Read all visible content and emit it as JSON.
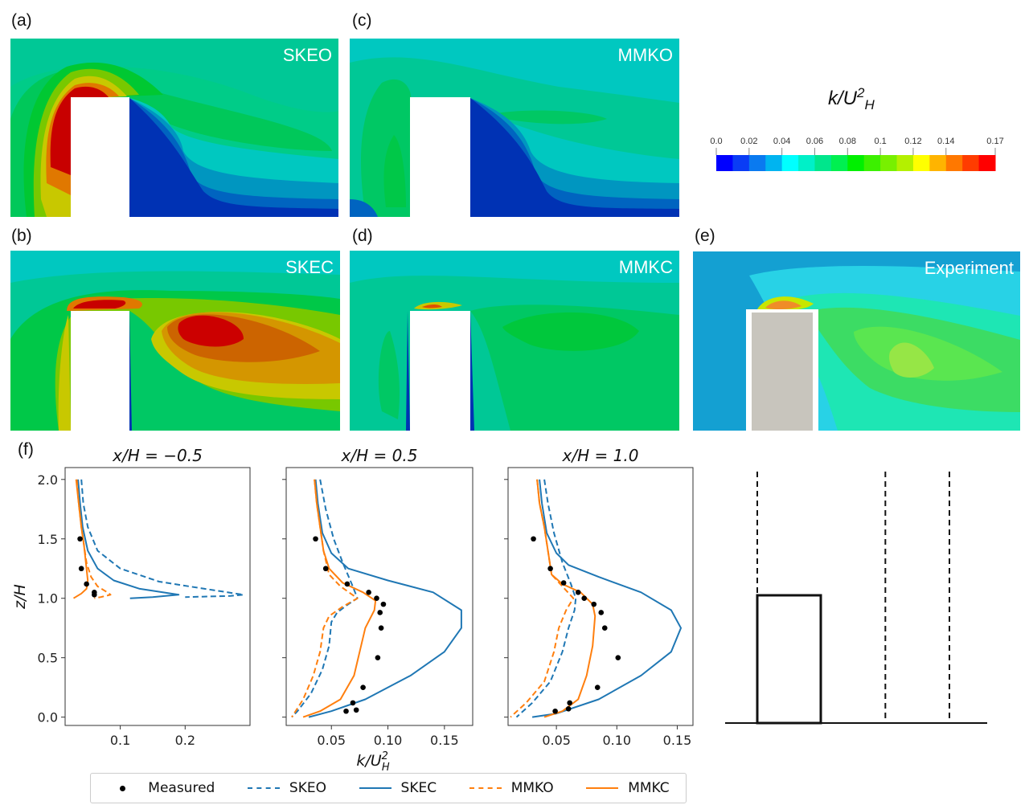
{
  "colors": {
    "skeo": "#1f77b4",
    "skec": "#1f77b4",
    "mmko": "#ff7f0e",
    "mmkc": "#ff7f0e",
    "measured": "#000000",
    "obstacle_sim": "#ffffff",
    "obstacle_exp": "#c8c5bd"
  },
  "panels": [
    {
      "id": "a",
      "label": "(a)",
      "title": "SKEO"
    },
    {
      "id": "c",
      "label": "(c)",
      "title": "MMKO"
    },
    {
      "id": "b",
      "label": "(b)",
      "title": "SKEC"
    },
    {
      "id": "d",
      "label": "(d)",
      "title": "MMKC"
    },
    {
      "id": "e",
      "label": "(e)",
      "title": "Experiment"
    },
    {
      "id": "f",
      "label": "(f)"
    }
  ],
  "colorbar": {
    "title_base": "k/U",
    "title_sup": "2",
    "title_sub": "H",
    "ticks": [
      "0.0",
      "0.02",
      "0.04",
      "0.06",
      "0.08",
      "0.1",
      "0.12",
      "0.14",
      "0.17"
    ],
    "tick_values": [
      0.0,
      0.02,
      0.04,
      0.06,
      0.08,
      0.1,
      0.12,
      0.14,
      0.17
    ],
    "range": [
      0.0,
      0.17
    ],
    "levels": [
      "#0000ff",
      "#0a3cf5",
      "#0a7af0",
      "#00b4f0",
      "#00ffff",
      "#00f0c8",
      "#00e68c",
      "#00f050",
      "#00f000",
      "#3cf000",
      "#78f000",
      "#b4f000",
      "#ffff00",
      "#ffb400",
      "#ff7800",
      "#ff3c00",
      "#ff0000"
    ]
  },
  "legend": {
    "items": [
      {
        "label": "Measured",
        "key": "measured"
      },
      {
        "label": "SKEO",
        "key": "skeo"
      },
      {
        "label": "SKEC",
        "key": "skec"
      },
      {
        "label": "MMKO",
        "key": "mmko"
      },
      {
        "label": "MMKC",
        "key": "mmkc"
      }
    ]
  },
  "schematic": {
    "description": "Building outline with three vertical dashed sampling lines",
    "sample_x_over_H": [
      -0.5,
      0.5,
      1.0
    ]
  },
  "chart_data": [
    {
      "type": "line",
      "title": "x/H = −0.5",
      "xlabel": "",
      "ylabel": "z/H",
      "xlim": [
        0.015,
        0.3
      ],
      "ylim": [
        -0.07,
        2.1
      ],
      "xticks": [
        0.1,
        0.2
      ],
      "xtick_labels": [
        "0.1",
        "0.2"
      ],
      "yticks": [
        0.0,
        0.5,
        1.0,
        1.5,
        2.0
      ],
      "ytick_labels": [
        "0.0",
        "0.5",
        "1.0",
        "1.5",
        "2.0"
      ],
      "series": [
        {
          "name": "SKEO",
          "style": "dashed",
          "points": [
            [
              0.04,
              2.0
            ],
            [
              0.043,
              1.8
            ],
            [
              0.05,
              1.6
            ],
            [
              0.065,
              1.4
            ],
            [
              0.1,
              1.25
            ],
            [
              0.16,
              1.14
            ],
            [
              0.23,
              1.08
            ],
            [
              0.29,
              1.03
            ],
            [
              0.27,
              1.02
            ],
            [
              0.2,
              1.01
            ]
          ]
        },
        {
          "name": "SKEC",
          "style": "solid",
          "points": [
            [
              0.035,
              2.0
            ],
            [
              0.038,
              1.8
            ],
            [
              0.042,
              1.6
            ],
            [
              0.05,
              1.4
            ],
            [
              0.065,
              1.25
            ],
            [
              0.09,
              1.15
            ],
            [
              0.13,
              1.08
            ],
            [
              0.19,
              1.03
            ],
            [
              0.15,
              1.01
            ],
            [
              0.115,
              1.0
            ]
          ]
        },
        {
          "name": "MMKO",
          "style": "dashed",
          "points": [
            [
              0.033,
              2.0
            ],
            [
              0.036,
              1.8
            ],
            [
              0.04,
              1.6
            ],
            [
              0.044,
              1.45
            ],
            [
              0.048,
              1.3
            ],
            [
              0.055,
              1.18
            ],
            [
              0.065,
              1.1
            ],
            [
              0.08,
              1.05
            ],
            [
              0.085,
              1.03
            ],
            [
              0.07,
              1.01
            ],
            [
              0.06,
              1.0
            ]
          ]
        },
        {
          "name": "MMKC",
          "style": "solid",
          "points": [
            [
              0.032,
              2.0
            ],
            [
              0.036,
              1.8
            ],
            [
              0.04,
              1.6
            ],
            [
              0.044,
              1.45
            ],
            [
              0.047,
              1.3
            ],
            [
              0.05,
              1.15
            ],
            [
              0.048,
              1.08
            ],
            [
              0.04,
              1.04
            ],
            [
              0.028,
              1.0
            ]
          ]
        },
        {
          "name": "Measured",
          "style": "markers",
          "points": [
            [
              0.038,
              1.5
            ],
            [
              0.04,
              1.25
            ],
            [
              0.048,
              1.12
            ],
            [
              0.06,
              1.05
            ],
            [
              0.06,
              1.03
            ]
          ]
        }
      ]
    },
    {
      "type": "line",
      "title": "x/H = 0.5",
      "xlabel": "k/U_H^2",
      "ylabel": "",
      "xlim": [
        0.01,
        0.175
      ],
      "ylim": [
        -0.07,
        2.1
      ],
      "xticks": [
        0.05,
        0.1,
        0.15
      ],
      "xtick_labels": [
        "0.05",
        "0.10",
        "0.15"
      ],
      "yticks": [
        0.0,
        0.5,
        1.0,
        1.5,
        2.0
      ],
      "ytick_labels": [],
      "series": [
        {
          "name": "SKEO",
          "style": "dashed",
          "points": [
            [
              0.04,
              2.0
            ],
            [
              0.045,
              1.75
            ],
            [
              0.052,
              1.5
            ],
            [
              0.06,
              1.3
            ],
            [
              0.068,
              1.12
            ],
            [
              0.073,
              1.0
            ],
            [
              0.065,
              0.95
            ],
            [
              0.055,
              0.88
            ],
            [
              0.05,
              0.8
            ],
            [
              0.048,
              0.6
            ],
            [
              0.042,
              0.4
            ],
            [
              0.032,
              0.2
            ],
            [
              0.02,
              0.05
            ],
            [
              0.015,
              0.0
            ]
          ]
        },
        {
          "name": "SKEC",
          "style": "solid",
          "points": [
            [
              0.036,
              2.0
            ],
            [
              0.038,
              1.8
            ],
            [
              0.042,
              1.55
            ],
            [
              0.05,
              1.38
            ],
            [
              0.065,
              1.25
            ],
            [
              0.1,
              1.15
            ],
            [
              0.14,
              1.05
            ],
            [
              0.165,
              0.9
            ],
            [
              0.165,
              0.75
            ],
            [
              0.15,
              0.55
            ],
            [
              0.12,
              0.35
            ],
            [
              0.08,
              0.15
            ],
            [
              0.05,
              0.05
            ],
            [
              0.03,
              0.0
            ]
          ]
        },
        {
          "name": "MMKO",
          "style": "dashed",
          "points": [
            [
              0.035,
              2.0
            ],
            [
              0.037,
              1.8
            ],
            [
              0.04,
              1.6
            ],
            [
              0.043,
              1.4
            ],
            [
              0.048,
              1.2
            ],
            [
              0.058,
              1.1
            ],
            [
              0.073,
              1.0
            ],
            [
              0.06,
              0.93
            ],
            [
              0.048,
              0.85
            ],
            [
              0.043,
              0.75
            ],
            [
              0.04,
              0.55
            ],
            [
              0.034,
              0.35
            ],
            [
              0.025,
              0.15
            ],
            [
              0.015,
              0.0
            ]
          ]
        },
        {
          "name": "MMKC",
          "style": "solid",
          "points": [
            [
              0.035,
              2.0
            ],
            [
              0.037,
              1.8
            ],
            [
              0.04,
              1.6
            ],
            [
              0.043,
              1.4
            ],
            [
              0.048,
              1.25
            ],
            [
              0.06,
              1.13
            ],
            [
              0.078,
              1.05
            ],
            [
              0.089,
              0.98
            ],
            [
              0.088,
              0.9
            ],
            [
              0.08,
              0.75
            ],
            [
              0.075,
              0.55
            ],
            [
              0.07,
              0.35
            ],
            [
              0.058,
              0.15
            ],
            [
              0.04,
              0.05
            ],
            [
              0.025,
              0.0
            ]
          ]
        },
        {
          "name": "Measured",
          "style": "markers",
          "points": [
            [
              0.036,
              1.5
            ],
            [
              0.045,
              1.25
            ],
            [
              0.064,
              1.12
            ],
            [
              0.083,
              1.05
            ],
            [
              0.09,
              1.0
            ],
            [
              0.096,
              0.95
            ],
            [
              0.093,
              0.88
            ],
            [
              0.094,
              0.75
            ],
            [
              0.091,
              0.5
            ],
            [
              0.078,
              0.25
            ],
            [
              0.069,
              0.12
            ],
            [
              0.072,
              0.06
            ],
            [
              0.063,
              0.05
            ]
          ]
        }
      ]
    },
    {
      "type": "line",
      "title": "x/H = 1.0",
      "xlabel": "",
      "ylabel": "",
      "xlim": [
        0.01,
        0.163
      ],
      "ylim": [
        -0.07,
        2.1
      ],
      "xticks": [
        0.05,
        0.1,
        0.15
      ],
      "xtick_labels": [
        "0.05",
        "0.10",
        "0.15"
      ],
      "yticks": [
        0.0,
        0.5,
        1.0,
        1.5,
        2.0
      ],
      "ytick_labels": [],
      "series": [
        {
          "name": "SKEO",
          "style": "dashed",
          "points": [
            [
              0.04,
              2.0
            ],
            [
              0.043,
              1.8
            ],
            [
              0.048,
              1.55
            ],
            [
              0.055,
              1.3
            ],
            [
              0.062,
              1.12
            ],
            [
              0.066,
              1.0
            ],
            [
              0.065,
              0.9
            ],
            [
              0.06,
              0.75
            ],
            [
              0.055,
              0.55
            ],
            [
              0.045,
              0.3
            ],
            [
              0.03,
              0.12
            ],
            [
              0.017,
              0.0
            ]
          ]
        },
        {
          "name": "SKEC",
          "style": "solid",
          "points": [
            [
              0.036,
              2.0
            ],
            [
              0.038,
              1.8
            ],
            [
              0.042,
              1.55
            ],
            [
              0.05,
              1.38
            ],
            [
              0.06,
              1.28
            ],
            [
              0.085,
              1.18
            ],
            [
              0.12,
              1.05
            ],
            [
              0.145,
              0.9
            ],
            [
              0.153,
              0.75
            ],
            [
              0.145,
              0.55
            ],
            [
              0.12,
              0.35
            ],
            [
              0.085,
              0.15
            ],
            [
              0.05,
              0.03
            ],
            [
              0.03,
              0.0
            ]
          ]
        },
        {
          "name": "MMKO",
          "style": "dashed",
          "points": [
            [
              0.034,
              2.0
            ],
            [
              0.036,
              1.8
            ],
            [
              0.04,
              1.6
            ],
            [
              0.043,
              1.4
            ],
            [
              0.046,
              1.2
            ],
            [
              0.055,
              1.1
            ],
            [
              0.064,
              1.0
            ],
            [
              0.058,
              0.9
            ],
            [
              0.052,
              0.75
            ],
            [
              0.048,
              0.55
            ],
            [
              0.04,
              0.3
            ],
            [
              0.025,
              0.12
            ],
            [
              0.012,
              0.0
            ]
          ]
        },
        {
          "name": "MMKC",
          "style": "solid",
          "points": [
            [
              0.034,
              2.0
            ],
            [
              0.036,
              1.8
            ],
            [
              0.04,
              1.6
            ],
            [
              0.043,
              1.4
            ],
            [
              0.046,
              1.2
            ],
            [
              0.055,
              1.12
            ],
            [
              0.07,
              1.05
            ],
            [
              0.08,
              0.95
            ],
            [
              0.082,
              0.85
            ],
            [
              0.08,
              0.6
            ],
            [
              0.075,
              0.35
            ],
            [
              0.068,
              0.15
            ],
            [
              0.055,
              0.05
            ],
            [
              0.04,
              0.0
            ]
          ]
        },
        {
          "name": "Measured",
          "style": "markers",
          "points": [
            [
              0.031,
              1.5
            ],
            [
              0.045,
              1.25
            ],
            [
              0.056,
              1.13
            ],
            [
              0.068,
              1.05
            ],
            [
              0.073,
              1.0
            ],
            [
              0.081,
              0.95
            ],
            [
              0.087,
              0.88
            ],
            [
              0.09,
              0.75
            ],
            [
              0.101,
              0.5
            ],
            [
              0.084,
              0.25
            ],
            [
              0.061,
              0.12
            ],
            [
              0.06,
              0.07
            ],
            [
              0.049,
              0.05
            ]
          ]
        }
      ]
    }
  ]
}
